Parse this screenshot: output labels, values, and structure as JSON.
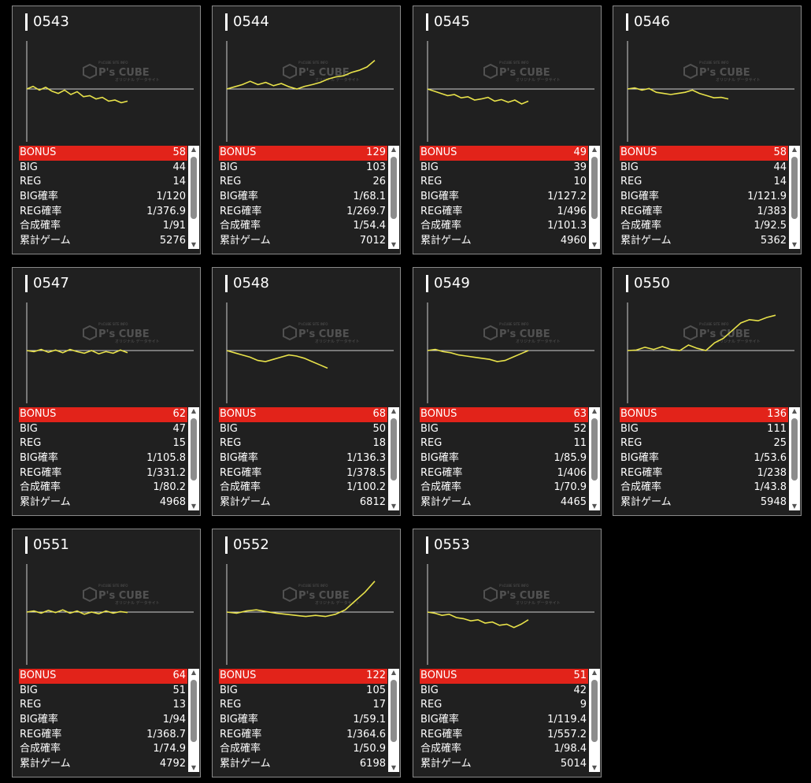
{
  "labels": {
    "bonus": "BONUS",
    "big": "BIG",
    "reg": "REG",
    "big_rate": "BIG確率",
    "reg_rate": "REG確率",
    "total_rate": "合成確率",
    "games": "累計ゲーム"
  },
  "icons": {
    "scroll_up": "▲",
    "scroll_down": "▼"
  },
  "watermark": {
    "brand": "P's CUBE",
    "sub": "P'sCUBE SITE INFO",
    "sub2": "オリジナル データサイト"
  },
  "colors": {
    "line": "#e8e24a",
    "bonus_bg": "#e2231a",
    "panel": "#202020"
  },
  "machines": [
    {
      "id": "0543",
      "bonus": "58",
      "big": "44",
      "reg": "14",
      "big_rate": "1/120",
      "reg_rate": "1/376.9",
      "total_rate": "1/91",
      "games": "5276",
      "trend": [
        0,
        0.12,
        -0.05,
        0.08,
        -0.1,
        -0.2,
        -0.05,
        -0.25,
        -0.12,
        -0.35,
        -0.3,
        -0.45,
        -0.38,
        -0.55,
        -0.5,
        -0.62,
        -0.55
      ]
    },
    {
      "id": "0544",
      "bonus": "129",
      "big": "103",
      "reg": "26",
      "big_rate": "1/68.1",
      "reg_rate": "1/269.7",
      "total_rate": "1/54.4",
      "games": "7012",
      "trend": [
        0,
        0.1,
        0.2,
        0.35,
        0.2,
        0.3,
        0.15,
        0.25,
        0.1,
        0.0,
        0.12,
        0.2,
        0.3,
        0.45,
        0.55,
        0.6,
        0.75,
        0.85,
        1.0,
        1.3
      ]
    },
    {
      "id": "0545",
      "bonus": "49",
      "big": "39",
      "reg": "10",
      "big_rate": "1/127.2",
      "reg_rate": "1/496",
      "total_rate": "1/101.3",
      "games": "4960",
      "trend": [
        0,
        -0.1,
        -0.2,
        -0.3,
        -0.25,
        -0.4,
        -0.35,
        -0.5,
        -0.45,
        -0.38,
        -0.55,
        -0.48,
        -0.6,
        -0.5,
        -0.68,
        -0.55
      ]
    },
    {
      "id": "0546",
      "bonus": "58",
      "big": "44",
      "reg": "14",
      "big_rate": "1/121.9",
      "reg_rate": "1/383",
      "total_rate": "1/92.5",
      "games": "5362",
      "trend": [
        0,
        0.05,
        -0.05,
        0.02,
        -0.15,
        -0.2,
        -0.25,
        -0.2,
        -0.15,
        -0.05,
        -0.2,
        -0.3,
        -0.4,
        -0.38,
        -0.45
      ]
    },
    {
      "id": "0547",
      "bonus": "62",
      "big": "47",
      "reg": "15",
      "big_rate": "1/105.8",
      "reg_rate": "1/331.2",
      "total_rate": "1/80.2",
      "games": "4968",
      "trend": [
        0,
        -0.05,
        0.05,
        -0.08,
        0.02,
        -0.1,
        0.05,
        -0.05,
        -0.12,
        0.0,
        -0.15,
        -0.05,
        -0.12,
        0.02,
        -0.1
      ]
    },
    {
      "id": "0548",
      "bonus": "68",
      "big": "50",
      "reg": "18",
      "big_rate": "1/136.3",
      "reg_rate": "1/378.5",
      "total_rate": "1/100.2",
      "games": "6812",
      "trend": [
        0,
        -0.1,
        -0.2,
        -0.3,
        -0.45,
        -0.5,
        -0.4,
        -0.3,
        -0.2,
        -0.25,
        -0.35,
        -0.5,
        -0.65,
        -0.8
      ]
    },
    {
      "id": "0549",
      "bonus": "63",
      "big": "52",
      "reg": "11",
      "big_rate": "1/85.9",
      "reg_rate": "1/406",
      "total_rate": "1/70.9",
      "games": "4465",
      "trend": [
        0,
        0.05,
        -0.05,
        -0.1,
        -0.2,
        -0.25,
        -0.3,
        -0.35,
        -0.4,
        -0.5,
        -0.45,
        -0.3,
        -0.15,
        0.0
      ]
    },
    {
      "id": "0550",
      "bonus": "136",
      "big": "111",
      "reg": "25",
      "big_rate": "1/53.6",
      "reg_rate": "1/238",
      "total_rate": "1/43.8",
      "games": "5948",
      "trend": [
        0,
        0.02,
        0.15,
        0.05,
        0.18,
        0.05,
        0.0,
        0.25,
        0.1,
        0.0,
        0.35,
        0.55,
        0.9,
        1.25,
        1.4,
        1.35,
        1.5,
        1.6
      ]
    },
    {
      "id": "0551",
      "bonus": "64",
      "big": "51",
      "reg": "13",
      "big_rate": "1/94",
      "reg_rate": "1/368.7",
      "total_rate": "1/74.9",
      "games": "4792",
      "trend": [
        0,
        0.05,
        -0.05,
        0.08,
        -0.02,
        0.1,
        -0.05,
        0.05,
        -0.1,
        0.0,
        -0.08,
        0.05,
        -0.05,
        0.02,
        -0.02
      ]
    },
    {
      "id": "0552",
      "bonus": "122",
      "big": "105",
      "reg": "17",
      "big_rate": "1/59.1",
      "reg_rate": "1/364.6",
      "total_rate": "1/50.9",
      "games": "6198",
      "trend": [
        0,
        -0.05,
        0.05,
        0.1,
        0.02,
        -0.05,
        -0.1,
        -0.15,
        -0.2,
        -0.15,
        -0.2,
        -0.1,
        0.1,
        0.5,
        0.9,
        1.4
      ]
    },
    {
      "id": "0553",
      "bonus": "51",
      "big": "42",
      "reg": "9",
      "big_rate": "1/119.4",
      "reg_rate": "1/557.2",
      "total_rate": "1/98.4",
      "games": "5014",
      "trend": [
        0,
        -0.05,
        -0.15,
        -0.1,
        -0.25,
        -0.3,
        -0.4,
        -0.35,
        -0.5,
        -0.45,
        -0.6,
        -0.55,
        -0.7,
        -0.55,
        -0.35
      ]
    }
  ]
}
